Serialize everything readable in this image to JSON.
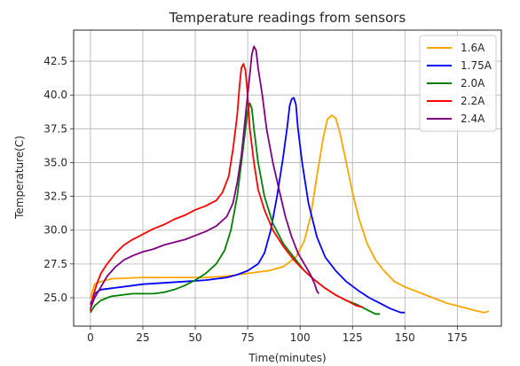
{
  "chart_data": {
    "type": "line",
    "title": "Temperature readings from sensors",
    "xlabel": "Time(minutes)",
    "ylabel": "Temperature(C)",
    "xlim": [
      -8,
      196
    ],
    "ylim": [
      22.9,
      44.8
    ],
    "xticks": [
      0,
      25,
      50,
      75,
      100,
      125,
      150,
      175
    ],
    "yticks": [
      25.0,
      27.5,
      30.0,
      32.5,
      35.0,
      37.5,
      40.0,
      42.5
    ],
    "xtick_labels": [
      "0",
      "25",
      "50",
      "75",
      "100",
      "125",
      "150",
      "175"
    ],
    "ytick_labels": [
      "25.0",
      "27.5",
      "30.0",
      "32.5",
      "35.0",
      "37.5",
      "40.0",
      "42.5"
    ],
    "grid": true,
    "legend_position": "top-right",
    "series": [
      {
        "name": "1.6A",
        "color": "#ffa500",
        "points": [
          [
            0,
            25.0
          ],
          [
            2,
            26.0
          ],
          [
            5,
            26.2
          ],
          [
            10,
            26.4
          ],
          [
            25,
            26.5
          ],
          [
            40,
            26.5
          ],
          [
            55,
            26.5
          ],
          [
            65,
            26.6
          ],
          [
            75,
            26.8
          ],
          [
            85,
            27.0
          ],
          [
            92,
            27.3
          ],
          [
            98,
            28.0
          ],
          [
            102,
            29.2
          ],
          [
            105,
            31.0
          ],
          [
            108,
            34.0
          ],
          [
            111,
            36.8
          ],
          [
            113,
            38.2
          ],
          [
            115,
            38.5
          ],
          [
            117,
            38.3
          ],
          [
            119,
            37.2
          ],
          [
            122,
            35.0
          ],
          [
            125,
            32.8
          ],
          [
            128,
            30.9
          ],
          [
            132,
            29.0
          ],
          [
            136,
            27.8
          ],
          [
            140,
            27.0
          ],
          [
            145,
            26.2
          ],
          [
            150,
            25.8
          ],
          [
            155,
            25.5
          ],
          [
            160,
            25.2
          ],
          [
            165,
            24.9
          ],
          [
            170,
            24.6
          ],
          [
            175,
            24.4
          ],
          [
            180,
            24.2
          ],
          [
            185,
            24.0
          ],
          [
            188,
            23.9
          ],
          [
            190,
            24.0
          ]
        ]
      },
      {
        "name": "1.75A",
        "color": "#0000ff",
        "points": [
          [
            0,
            24.5
          ],
          [
            2,
            25.3
          ],
          [
            5,
            25.6
          ],
          [
            10,
            25.7
          ],
          [
            15,
            25.8
          ],
          [
            25,
            26.0
          ],
          [
            35,
            26.1
          ],
          [
            45,
            26.2
          ],
          [
            55,
            26.3
          ],
          [
            65,
            26.5
          ],
          [
            70,
            26.7
          ],
          [
            75,
            27.0
          ],
          [
            80,
            27.5
          ],
          [
            83,
            28.3
          ],
          [
            86,
            30.0
          ],
          [
            89,
            32.5
          ],
          [
            92,
            35.5
          ],
          [
            94,
            37.8
          ],
          [
            95,
            39.2
          ],
          [
            96,
            39.7
          ],
          [
            97,
            39.8
          ],
          [
            98,
            39.3
          ],
          [
            99,
            37.5
          ],
          [
            101,
            35.0
          ],
          [
            104,
            32.0
          ],
          [
            108,
            29.5
          ],
          [
            112,
            28.0
          ],
          [
            117,
            27.0
          ],
          [
            122,
            26.2
          ],
          [
            128,
            25.5
          ],
          [
            133,
            25.0
          ],
          [
            138,
            24.6
          ],
          [
            143,
            24.2
          ],
          [
            148,
            23.9
          ],
          [
            150,
            23.9
          ]
        ]
      },
      {
        "name": "2.0A",
        "color": "#008000",
        "points": [
          [
            0,
            23.9
          ],
          [
            2,
            24.4
          ],
          [
            5,
            24.8
          ],
          [
            8,
            25.0
          ],
          [
            10,
            25.1
          ],
          [
            15,
            25.2
          ],
          [
            20,
            25.3
          ],
          [
            25,
            25.3
          ],
          [
            30,
            25.3
          ],
          [
            35,
            25.4
          ],
          [
            40,
            25.6
          ],
          [
            45,
            25.9
          ],
          [
            50,
            26.3
          ],
          [
            55,
            26.8
          ],
          [
            60,
            27.5
          ],
          [
            64,
            28.5
          ],
          [
            67,
            30.0
          ],
          [
            70,
            32.5
          ],
          [
            72,
            35.0
          ],
          [
            74,
            37.5
          ],
          [
            75,
            38.8
          ],
          [
            76,
            39.4
          ],
          [
            77,
            39.0
          ],
          [
            78,
            37.5
          ],
          [
            80,
            35.0
          ],
          [
            83,
            32.5
          ],
          [
            87,
            30.5
          ],
          [
            92,
            29.0
          ],
          [
            97,
            28.0
          ],
          [
            102,
            27.0
          ],
          [
            107,
            26.3
          ],
          [
            112,
            25.7
          ],
          [
            117,
            25.2
          ],
          [
            122,
            24.8
          ],
          [
            127,
            24.5
          ],
          [
            132,
            24.1
          ],
          [
            136,
            23.8
          ],
          [
            138,
            23.8
          ]
        ]
      },
      {
        "name": "2.2A",
        "color": "#ff0000",
        "points": [
          [
            0,
            24.0
          ],
          [
            1,
            25.0
          ],
          [
            3,
            26.0
          ],
          [
            5,
            26.8
          ],
          [
            8,
            27.5
          ],
          [
            12,
            28.3
          ],
          [
            16,
            28.9
          ],
          [
            20,
            29.3
          ],
          [
            25,
            29.7
          ],
          [
            30,
            30.1
          ],
          [
            35,
            30.4
          ],
          [
            40,
            30.8
          ],
          [
            45,
            31.1
          ],
          [
            50,
            31.5
          ],
          [
            55,
            31.8
          ],
          [
            60,
            32.2
          ],
          [
            63,
            32.8
          ],
          [
            66,
            34.0
          ],
          [
            68,
            36.0
          ],
          [
            70,
            38.5
          ],
          [
            71,
            40.5
          ],
          [
            72,
            42.0
          ],
          [
            73,
            42.3
          ],
          [
            74,
            41.8
          ],
          [
            75,
            40.0
          ],
          [
            76,
            37.5
          ],
          [
            78,
            35.0
          ],
          [
            80,
            33.0
          ],
          [
            83,
            31.5
          ],
          [
            87,
            30.0
          ],
          [
            92,
            28.8
          ],
          [
            97,
            27.8
          ],
          [
            102,
            27.0
          ],
          [
            107,
            26.3
          ],
          [
            112,
            25.7
          ],
          [
            117,
            25.2
          ],
          [
            122,
            24.8
          ],
          [
            127,
            24.4
          ],
          [
            130,
            24.3
          ]
        ]
      },
      {
        "name": "2.4A",
        "color": "#800080",
        "points": [
          [
            0,
            24.2
          ],
          [
            2,
            25.0
          ],
          [
            5,
            25.8
          ],
          [
            8,
            26.6
          ],
          [
            12,
            27.3
          ],
          [
            16,
            27.8
          ],
          [
            20,
            28.1
          ],
          [
            25,
            28.4
          ],
          [
            30,
            28.6
          ],
          [
            35,
            28.9
          ],
          [
            40,
            29.1
          ],
          [
            45,
            29.3
          ],
          [
            50,
            29.6
          ],
          [
            55,
            29.9
          ],
          [
            60,
            30.3
          ],
          [
            65,
            31.0
          ],
          [
            68,
            32.0
          ],
          [
            70,
            33.5
          ],
          [
            72,
            35.5
          ],
          [
            74,
            38.5
          ],
          [
            76,
            41.5
          ],
          [
            77,
            43.0
          ],
          [
            78,
            43.6
          ],
          [
            79,
            43.3
          ],
          [
            80,
            42.0
          ],
          [
            82,
            40.0
          ],
          [
            84,
            37.5
          ],
          [
            87,
            35.0
          ],
          [
            90,
            33.0
          ],
          [
            93,
            31.0
          ],
          [
            96,
            29.5
          ],
          [
            99,
            28.3
          ],
          [
            102,
            27.5
          ],
          [
            105,
            26.7
          ],
          [
            107,
            26.0
          ],
          [
            108,
            25.5
          ],
          [
            109,
            25.3
          ]
        ]
      }
    ]
  }
}
